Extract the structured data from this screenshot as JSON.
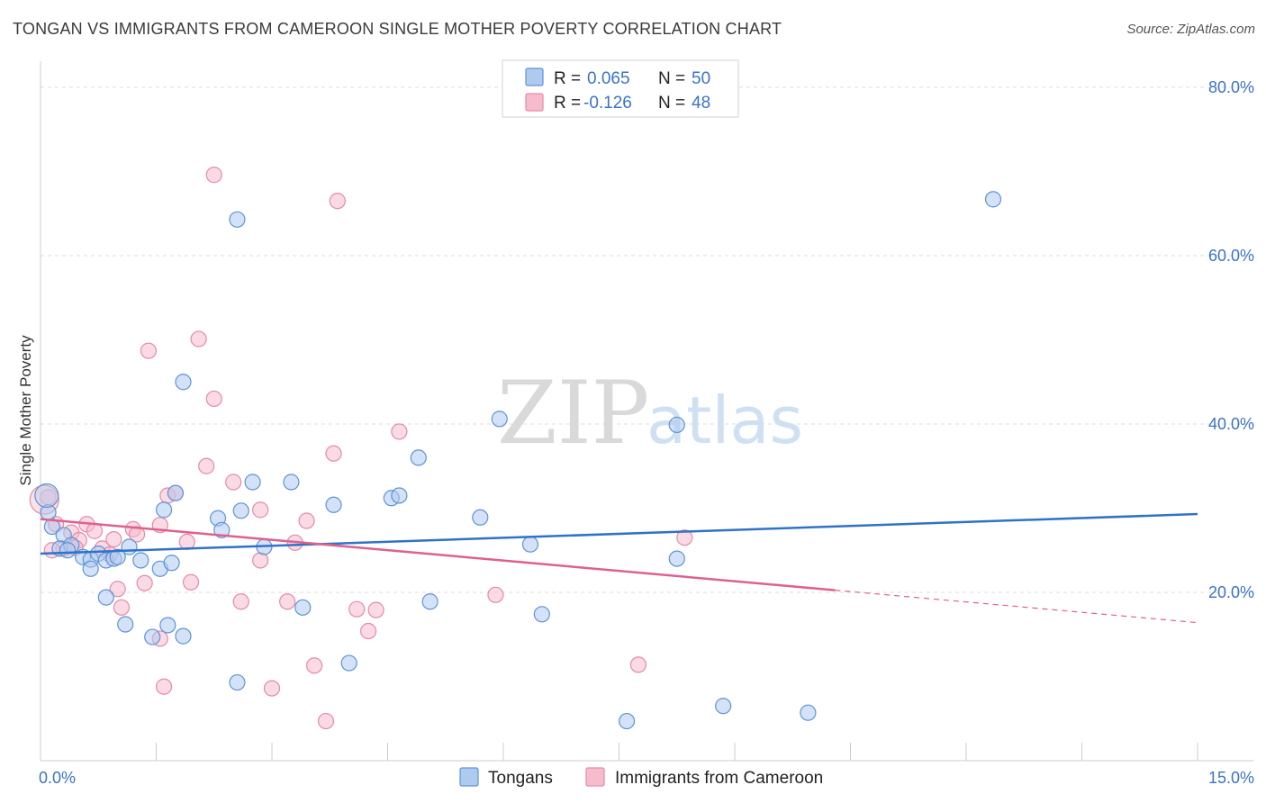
{
  "title": "TONGAN VS IMMIGRANTS FROM CAMEROON SINGLE MOTHER POVERTY CORRELATION CHART",
  "source": "Source: ZipAtlas.com",
  "watermark": {
    "zip": "ZIP",
    "atlas": "atlas"
  },
  "legend": {
    "rows": [
      {
        "r_label": "R =",
        "r_value": "0.065",
        "n_label": "N =",
        "n_value": "50"
      },
      {
        "r_label": "R =",
        "r_value": "-0.126",
        "n_label": "N =",
        "n_value": "48"
      }
    ]
  },
  "bottom_legend": [
    "Tongans",
    "Immigrants from Cameroon"
  ],
  "colors": {
    "tongans_fill": "#aecbef",
    "tongans_stroke": "#5f93d6",
    "tongans_line": "#2f72c9",
    "cameroon_fill": "#f6bccd",
    "cameroon_stroke": "#e58aa8",
    "cameroon_line": "#e0608d",
    "tick_color": "#3b73c7"
  },
  "chart_data": {
    "type": "scatter",
    "title": "TONGAN VS IMMIGRANTS FROM CAMEROON SINGLE MOTHER POVERTY CORRELATION CHART",
    "xlabel": "",
    "ylabel": "Single Mother Poverty",
    "xlim": [
      0,
      15
    ],
    "ylim": [
      0,
      80
    ],
    "x_tick_labels": [
      {
        "value": 0,
        "label": "0.0%"
      },
      {
        "value": 15,
        "label": "15.0%"
      }
    ],
    "y_tick_labels": [
      {
        "value": 20,
        "label": "20.0%"
      },
      {
        "value": 40,
        "label": "40.0%"
      },
      {
        "value": 60,
        "label": "60.0%"
      },
      {
        "value": 80,
        "label": "80.0%"
      }
    ],
    "grid": true,
    "series": [
      {
        "name": "Tongans",
        "trend": {
          "x": [
            0,
            15
          ],
          "y": [
            24.6,
            29.3
          ],
          "solid_to": 15
        },
        "points": [
          [
            0.1,
            29.5
          ],
          [
            0.15,
            27.8
          ],
          [
            0.3,
            26.8
          ],
          [
            0.25,
            25.2
          ],
          [
            0.4,
            25.6
          ],
          [
            0.35,
            25.0
          ],
          [
            0.55,
            24.2
          ],
          [
            0.65,
            23.9
          ],
          [
            0.75,
            24.6
          ],
          [
            0.85,
            23.8
          ],
          [
            0.95,
            24.0
          ],
          [
            0.65,
            22.8
          ],
          [
            0.85,
            19.4
          ],
          [
            1.0,
            24.2
          ],
          [
            1.15,
            25.4
          ],
          [
            1.1,
            16.2
          ],
          [
            1.3,
            23.8
          ],
          [
            1.45,
            14.7
          ],
          [
            1.55,
            22.8
          ],
          [
            1.65,
            16.1
          ],
          [
            1.7,
            23.5
          ],
          [
            1.85,
            14.8
          ],
          [
            1.75,
            31.8
          ],
          [
            1.6,
            29.8
          ],
          [
            2.3,
            28.8
          ],
          [
            2.35,
            27.4
          ],
          [
            2.6,
            29.7
          ],
          [
            2.9,
            25.4
          ],
          [
            2.75,
            33.1
          ],
          [
            3.25,
            33.1
          ],
          [
            3.4,
            18.2
          ],
          [
            3.8,
            30.4
          ],
          [
            4.0,
            11.6
          ],
          [
            4.55,
            31.2
          ],
          [
            4.65,
            31.5
          ],
          [
            4.9,
            36.0
          ],
          [
            5.05,
            18.9
          ],
          [
            5.7,
            28.9
          ],
          [
            5.95,
            40.6
          ],
          [
            6.35,
            25.7
          ],
          [
            6.5,
            17.4
          ],
          [
            7.6,
            4.7
          ],
          [
            8.25,
            39.9
          ],
          [
            8.25,
            24.0
          ],
          [
            8.85,
            6.5
          ],
          [
            9.95,
            5.7
          ],
          [
            12.35,
            66.7
          ],
          [
            2.55,
            64.3
          ],
          [
            1.85,
            45.0
          ],
          [
            2.55,
            9.3
          ]
        ]
      },
      {
        "name": "Immigrants from Cameroon",
        "trend": {
          "x": [
            0,
            15
          ],
          "y": [
            28.7,
            16.4
          ],
          "solid_to": 10.3
        },
        "points": [
          [
            0.1,
            31.3
          ],
          [
            0.2,
            28.1
          ],
          [
            0.3,
            25.2
          ],
          [
            0.4,
            27.1
          ],
          [
            0.5,
            26.2
          ],
          [
            0.6,
            28.1
          ],
          [
            0.7,
            27.3
          ],
          [
            0.8,
            25.2
          ],
          [
            0.9,
            24.5
          ],
          [
            1.0,
            20.4
          ],
          [
            1.05,
            18.2
          ],
          [
            1.2,
            27.5
          ],
          [
            1.25,
            26.9
          ],
          [
            1.35,
            21.1
          ],
          [
            1.4,
            48.7
          ],
          [
            1.55,
            14.5
          ],
          [
            1.6,
            8.8
          ],
          [
            1.65,
            31.5
          ],
          [
            1.75,
            31.8
          ],
          [
            1.9,
            26.0
          ],
          [
            1.95,
            21.2
          ],
          [
            2.05,
            50.1
          ],
          [
            2.15,
            35.0
          ],
          [
            2.25,
            43.0
          ],
          [
            2.25,
            69.6
          ],
          [
            2.5,
            33.1
          ],
          [
            2.6,
            18.9
          ],
          [
            2.85,
            29.8
          ],
          [
            3.0,
            8.6
          ],
          [
            3.2,
            18.9
          ],
          [
            3.3,
            25.9
          ],
          [
            3.45,
            28.5
          ],
          [
            3.55,
            11.3
          ],
          [
            3.7,
            4.7
          ],
          [
            3.8,
            36.5
          ],
          [
            3.85,
            66.5
          ],
          [
            4.1,
            18.0
          ],
          [
            4.25,
            15.4
          ],
          [
            4.35,
            17.9
          ],
          [
            4.65,
            39.1
          ],
          [
            5.9,
            19.7
          ],
          [
            7.75,
            11.4
          ],
          [
            8.35,
            26.5
          ],
          [
            0.15,
            25.0
          ],
          [
            0.45,
            25.3
          ],
          [
            0.95,
            26.3
          ],
          [
            1.55,
            28.0
          ],
          [
            2.85,
            23.8
          ]
        ]
      }
    ]
  }
}
